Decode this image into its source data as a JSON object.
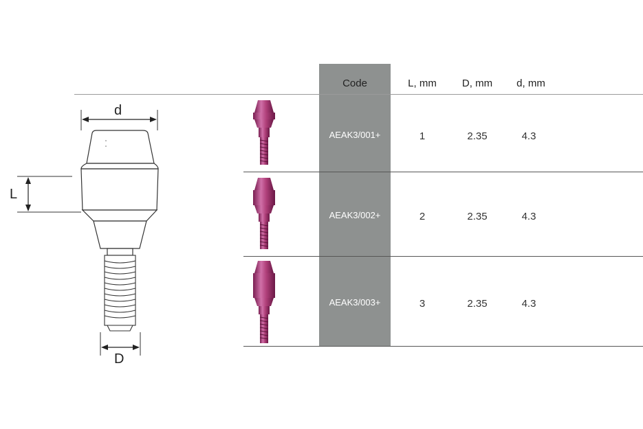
{
  "header": {
    "code": "Code",
    "l": "L, mm",
    "big_d": "D, mm",
    "small_d": "d, mm"
  },
  "rows": [
    {
      "code": "AEAK3/001+",
      "l": "1",
      "big_d": "2.35",
      "small_d": "4.3"
    },
    {
      "code": "AEAK3/002+",
      "l": "2",
      "big_d": "2.35",
      "small_d": "4.3"
    },
    {
      "code": "AEAK3/003+",
      "l": "3",
      "big_d": "2.35",
      "small_d": "4.3"
    }
  ],
  "diagram": {
    "label_d_top": "d",
    "label_l": "L",
    "label_d_bottom": "D"
  },
  "colors": {
    "code_band": "#8e9190",
    "abutment": "#b0407a"
  }
}
